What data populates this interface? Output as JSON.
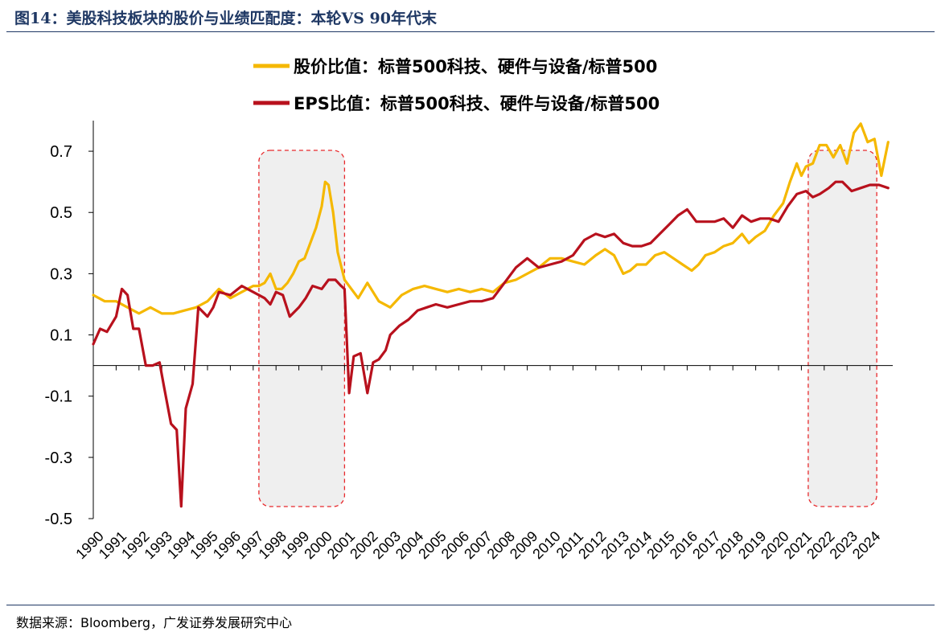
{
  "figure": {
    "title": "图14：美股科技板块的股价与业绩匹配度：本轮VS 90年代末",
    "source": "数据来源：Bloomberg，广发证券发展研究中心"
  },
  "chart_data": {
    "type": "line",
    "title": "",
    "xlabel": "",
    "ylabel": "",
    "ylim": [
      -0.5,
      0.75
    ],
    "yticks": [
      "0.7",
      "0.5",
      "0.3",
      "0.1",
      "-0.1",
      "-0.3",
      "-0.5"
    ],
    "xticks": [
      "1990",
      "1991",
      "1992",
      "1993",
      "1994",
      "1995",
      "1996",
      "1997",
      "1998",
      "1999",
      "2000",
      "2001",
      "2002",
      "2003",
      "2004",
      "2005",
      "2006",
      "2007",
      "2008",
      "2009",
      "2010",
      "2011",
      "2012",
      "2013",
      "2014",
      "2015",
      "2016",
      "2017",
      "2018",
      "2019",
      "2020",
      "2021",
      "2022",
      "2023",
      "2024"
    ],
    "grid": false,
    "legend_position": "top",
    "series": [
      {
        "name": "股价比值：标普500科技、硬件与设备/标普500",
        "color": "#f5b800",
        "x": [
          1990.0,
          1990.5,
          1991.0,
          1991.5,
          1992.0,
          1992.5,
          1993.0,
          1993.5,
          1994.0,
          1994.5,
          1995.0,
          1995.5,
          1996.0,
          1996.5,
          1997.0,
          1997.25,
          1997.5,
          1997.75,
          1998.0,
          1998.25,
          1998.5,
          1998.75,
          1999.0,
          1999.25,
          1999.5,
          1999.75,
          2000.0,
          2000.15,
          2000.3,
          2000.5,
          2000.7,
          2001.0,
          2001.3,
          2001.6,
          2002.0,
          2002.5,
          2003.0,
          2003.5,
          2004.0,
          2004.5,
          2005.0,
          2005.5,
          2006.0,
          2006.5,
          2007.0,
          2007.5,
          2008.0,
          2008.5,
          2009.0,
          2009.5,
          2010.0,
          2010.5,
          2011.0,
          2011.5,
          2012.0,
          2012.4,
          2012.8,
          2013.2,
          2013.5,
          2013.8,
          2014.2,
          2014.6,
          2015.0,
          2015.4,
          2015.8,
          2016.2,
          2016.5,
          2016.8,
          2017.2,
          2017.6,
          2018.0,
          2018.4,
          2018.7,
          2019.0,
          2019.4,
          2019.8,
          2020.2,
          2020.5,
          2020.8,
          2021.0,
          2021.2,
          2021.5,
          2021.8,
          2022.1,
          2022.4,
          2022.7,
          2023.0,
          2023.3,
          2023.6,
          2023.9,
          2024.2,
          2024.5,
          2024.8
        ],
        "values": [
          0.23,
          0.21,
          0.21,
          0.19,
          0.17,
          0.19,
          0.17,
          0.17,
          0.18,
          0.19,
          0.21,
          0.25,
          0.22,
          0.24,
          0.26,
          0.26,
          0.27,
          0.3,
          0.25,
          0.25,
          0.27,
          0.3,
          0.34,
          0.35,
          0.4,
          0.45,
          0.52,
          0.6,
          0.59,
          0.5,
          0.37,
          0.28,
          0.25,
          0.22,
          0.27,
          0.21,
          0.19,
          0.23,
          0.25,
          0.26,
          0.25,
          0.24,
          0.25,
          0.24,
          0.25,
          0.24,
          0.27,
          0.28,
          0.3,
          0.32,
          0.35,
          0.35,
          0.34,
          0.33,
          0.36,
          0.38,
          0.36,
          0.3,
          0.31,
          0.33,
          0.33,
          0.36,
          0.37,
          0.35,
          0.33,
          0.31,
          0.33,
          0.36,
          0.37,
          0.39,
          0.4,
          0.43,
          0.4,
          0.42,
          0.44,
          0.49,
          0.53,
          0.6,
          0.66,
          0.62,
          0.65,
          0.66,
          0.72,
          0.72,
          0.68,
          0.72,
          0.66,
          0.76,
          0.79,
          0.73,
          0.74,
          0.62,
          0.73
        ]
      },
      {
        "name": "EPS比值：标普500科技、硬件与设备/标普500",
        "color": "#b8111d",
        "x": [
          1990.0,
          1990.3,
          1990.6,
          1991.0,
          1991.25,
          1991.5,
          1991.75,
          1992.0,
          1992.3,
          1992.6,
          1992.9,
          1993.1,
          1993.4,
          1993.65,
          1993.85,
          1994.05,
          1994.35,
          1994.6,
          1995.0,
          1995.25,
          1995.5,
          1996.0,
          1996.5,
          1997.0,
          1997.5,
          1997.75,
          1998.0,
          1998.3,
          1998.6,
          1999.0,
          1999.3,
          1999.6,
          2000.0,
          2000.3,
          2000.6,
          2000.85,
          2001.0,
          2001.2,
          2001.4,
          2001.7,
          2002.0,
          2002.25,
          2002.5,
          2002.8,
          2003.0,
          2003.4,
          2003.8,
          2004.2,
          2004.6,
          2005.0,
          2005.5,
          2006.0,
          2006.5,
          2007.0,
          2007.5,
          2008.0,
          2008.5,
          2009.0,
          2009.5,
          2010.0,
          2010.5,
          2011.0,
          2011.5,
          2012.0,
          2012.4,
          2012.8,
          2013.2,
          2013.6,
          2014.0,
          2014.4,
          2014.8,
          2015.2,
          2015.6,
          2016.0,
          2016.4,
          2016.8,
          2017.2,
          2017.6,
          2018.0,
          2018.4,
          2018.8,
          2019.2,
          2019.6,
          2020.0,
          2020.4,
          2020.8,
          2021.2,
          2021.5,
          2021.8,
          2022.2,
          2022.5,
          2022.8,
          2023.2,
          2023.6,
          2024.0,
          2024.4,
          2024.8
        ],
        "values": [
          0.07,
          0.12,
          0.11,
          0.16,
          0.25,
          0.23,
          0.12,
          0.12,
          0.0,
          0.0,
          0.01,
          -0.07,
          -0.19,
          -0.21,
          -0.46,
          -0.14,
          -0.06,
          0.19,
          0.16,
          0.19,
          0.24,
          0.23,
          0.26,
          0.24,
          0.22,
          0.2,
          0.24,
          0.23,
          0.16,
          0.19,
          0.22,
          0.26,
          0.25,
          0.28,
          0.28,
          0.26,
          0.25,
          -0.09,
          0.03,
          0.04,
          -0.09,
          0.01,
          0.02,
          0.05,
          0.1,
          0.13,
          0.15,
          0.18,
          0.19,
          0.2,
          0.19,
          0.2,
          0.21,
          0.21,
          0.22,
          0.27,
          0.32,
          0.35,
          0.32,
          0.33,
          0.34,
          0.36,
          0.41,
          0.43,
          0.42,
          0.43,
          0.4,
          0.39,
          0.39,
          0.4,
          0.43,
          0.46,
          0.49,
          0.51,
          0.47,
          0.47,
          0.47,
          0.48,
          0.45,
          0.49,
          0.47,
          0.48,
          0.48,
          0.47,
          0.52,
          0.56,
          0.57,
          0.55,
          0.56,
          0.58,
          0.6,
          0.6,
          0.57,
          0.58,
          0.59,
          0.59,
          0.58
        ]
      }
    ],
    "highlight_periods": [
      {
        "from": 1997.25,
        "to": 2001.0
      },
      {
        "from": 2021.3,
        "to": 2024.3
      }
    ]
  }
}
